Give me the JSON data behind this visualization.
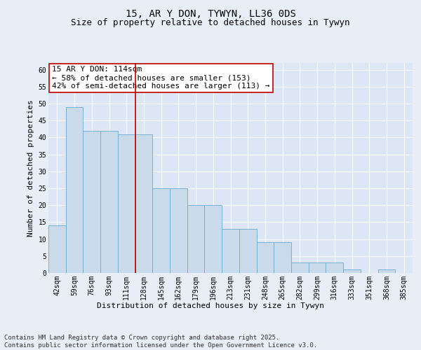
{
  "title": "15, AR Y DON, TYWYN, LL36 0DS",
  "subtitle": "Size of property relative to detached houses in Tywyn",
  "xlabel": "Distribution of detached houses by size in Tywyn",
  "ylabel": "Number of detached properties",
  "bar_data": [
    {
      "label": "42sqm",
      "value": 14
    },
    {
      "label": "59sqm",
      "value": 49
    },
    {
      "label": "76sqm",
      "value": 42
    },
    {
      "label": "93sqm",
      "value": 42
    },
    {
      "label": "111sqm",
      "value": 41
    },
    {
      "label": "128sqm",
      "value": 41
    },
    {
      "label": "145sqm",
      "value": 25
    },
    {
      "label": "162sqm",
      "value": 25
    },
    {
      "label": "179sqm",
      "value": 20
    },
    {
      "label": "196sqm",
      "value": 20
    },
    {
      "label": "213sqm",
      "value": 13
    },
    {
      "label": "231sqm",
      "value": 13
    },
    {
      "label": "248sqm",
      "value": 9
    },
    {
      "label": "265sqm",
      "value": 9
    },
    {
      "label": "282sqm",
      "value": 3
    },
    {
      "label": "299sqm",
      "value": 3
    },
    {
      "label": "316sqm",
      "value": 3
    },
    {
      "label": "333sqm",
      "value": 1
    },
    {
      "label": "351sqm",
      "value": 0
    },
    {
      "label": "368sqm",
      "value": 1
    },
    {
      "label": "385sqm",
      "value": 0
    }
  ],
  "bar_color": "#c9daea",
  "bar_edge_color": "#6aaad4",
  "red_line_x": 4.5,
  "highlight_line_color": "#c00000",
  "annotation_text": "15 AR Y DON: 114sqm\n← 58% of detached houses are smaller (153)\n42% of semi-detached houses are larger (113) →",
  "annotation_box_color": "#ffffff",
  "annotation_box_edge": "#c00000",
  "ylim": [
    0,
    62
  ],
  "yticks": [
    0,
    5,
    10,
    15,
    20,
    25,
    30,
    35,
    40,
    45,
    50,
    55,
    60
  ],
  "bg_color": "#e8eef7",
  "plot_bg_color": "#dce6f4",
  "grid_color": "#ffffff",
  "footer_text": "Contains HM Land Registry data © Crown copyright and database right 2025.\nContains public sector information licensed under the Open Government Licence v3.0.",
  "title_fontsize": 10,
  "subtitle_fontsize": 9,
  "axis_label_fontsize": 8,
  "tick_fontsize": 7,
  "annotation_fontsize": 8,
  "footer_fontsize": 6.5
}
